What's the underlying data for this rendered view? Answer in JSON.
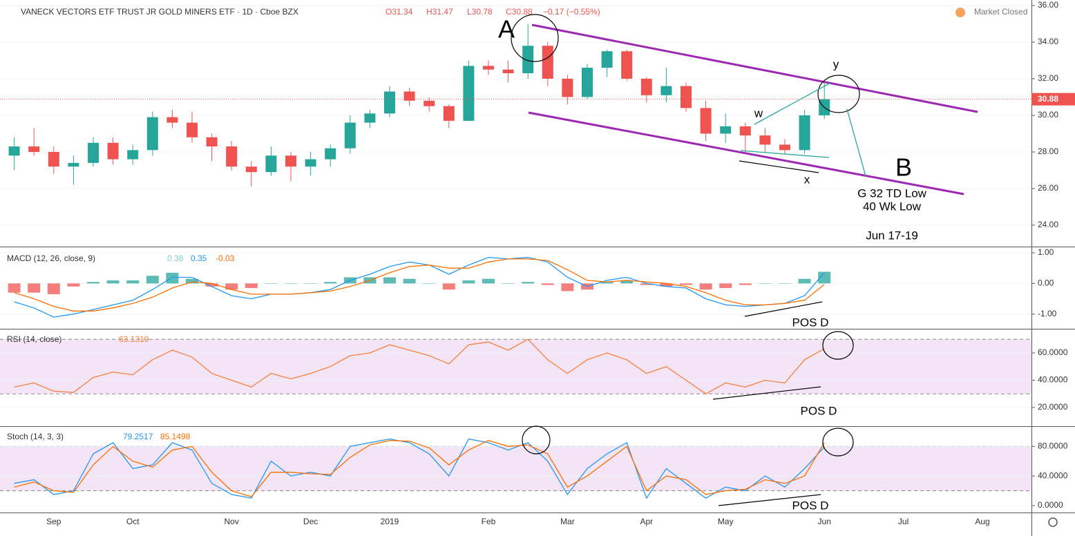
{
  "chart_data": [
    {
      "type": "candlestick",
      "title": "VANECK VECTORS ETF TRUST JR GOLD MINERS ETF · 1D · Cboe BZX",
      "quote": [
        "O31.34",
        "H31.47",
        "L30.78",
        "C30.88"
      ],
      "change": "−0.17 (−0.55%)",
      "status": "Market Closed",
      "categories": [
        null,
        null,
        "Sep",
        null,
        null,
        null,
        "Oct",
        null,
        null,
        null,
        null,
        "Nov",
        null,
        null,
        null,
        "Dec",
        null,
        null,
        null,
        "2019",
        null,
        null,
        null,
        null,
        "Feb",
        null,
        null,
        null,
        "Mar",
        null,
        null,
        null,
        "Apr",
        null,
        null,
        null,
        "May",
        null,
        null,
        null,
        null,
        "Jun",
        null,
        null,
        null,
        "Jul",
        null,
        null,
        null,
        "Aug"
      ],
      "open": [
        27.8,
        28.3,
        28.0,
        27.2,
        27.4,
        28.5,
        27.6,
        28.1,
        29.9,
        29.6,
        28.8,
        28.3,
        27.2,
        26.9,
        27.8,
        27.2,
        27.6,
        28.2,
        29.6,
        30.1,
        31.3,
        30.8,
        30.5,
        29.7,
        32.7,
        32.5,
        32.3,
        33.8,
        32.0,
        31.0,
        32.6,
        33.5,
        32.0,
        31.1,
        31.6,
        30.4,
        29.0,
        29.4,
        28.9,
        28.4,
        28.1,
        30.0,
        null,
        null,
        null,
        null,
        null,
        null,
        null,
        null
      ],
      "high": [
        28.8,
        29.3,
        28.3,
        27.8,
        28.8,
        28.8,
        28.4,
        30.2,
        30.3,
        30.2,
        29.0,
        28.6,
        27.5,
        28.3,
        28.0,
        28.0,
        28.4,
        30.0,
        30.3,
        31.6,
        31.5,
        31.0,
        30.6,
        33.0,
        33.0,
        33.0,
        35.0,
        34.0,
        32.2,
        32.8,
        33.6,
        33.6,
        32.1,
        32.6,
        31.8,
        30.8,
        30.1,
        29.6,
        29.3,
        28.7,
        30.3,
        31.8,
        null,
        null,
        null,
        null,
        null,
        null,
        null,
        null
      ],
      "low": [
        27.0,
        27.8,
        26.8,
        26.2,
        27.2,
        27.3,
        27.3,
        27.8,
        29.3,
        28.5,
        27.5,
        27.0,
        26.1,
        26.7,
        26.4,
        26.7,
        27.2,
        27.9,
        29.3,
        29.9,
        30.5,
        30.2,
        29.3,
        29.7,
        32.2,
        31.8,
        32.0,
        31.6,
        30.6,
        30.9,
        32.1,
        31.9,
        30.7,
        30.7,
        30.2,
        28.6,
        28.5,
        28.0,
        28.0,
        27.9,
        27.9,
        29.8,
        null,
        null,
        null,
        null,
        null,
        null,
        null,
        null
      ],
      "close": [
        28.3,
        28.0,
        27.2,
        27.4,
        28.5,
        27.6,
        28.1,
        29.9,
        29.6,
        28.8,
        28.3,
        27.2,
        26.9,
        27.8,
        27.2,
        27.6,
        28.2,
        29.6,
        30.1,
        31.3,
        30.8,
        30.5,
        29.7,
        32.7,
        32.5,
        32.3,
        33.8,
        32.0,
        31.0,
        32.6,
        33.5,
        32.0,
        31.1,
        31.6,
        30.4,
        29.0,
        29.4,
        28.9,
        28.4,
        28.1,
        30.0,
        30.88,
        null,
        null,
        null,
        null,
        null,
        null,
        null,
        null
      ],
      "up_color": "#26a69a",
      "down_color": "#ef5350",
      "ylim": [
        22.83,
        36.3
      ],
      "yticks": [
        {
          "value": 24,
          "label": "24.00"
        },
        {
          "value": 26,
          "label": "26.00"
        },
        {
          "value": 28,
          "label": "28.00"
        },
        {
          "value": 30,
          "label": "30.00"
        },
        {
          "value": 32,
          "label": "32.00"
        },
        {
          "value": 34,
          "label": "34.00"
        },
        {
          "value": 36,
          "label": "36.00"
        }
      ],
      "annotations": [
        "A",
        "B",
        "w",
        "x",
        "y",
        "G 32 TD Low",
        "40 Wk Low",
        "Jun 17-19"
      ]
    },
    {
      "type": "line",
      "title": "MACD (12, 26, close, 9)",
      "series": [
        {
          "type": "bar",
          "color": "#26a69a",
          "negative_color": "#ef5350",
          "values": [
            -0.3,
            -0.3,
            -0.35,
            -0.1,
            0.05,
            0.1,
            0.1,
            0.25,
            0.35,
            0.15,
            -0.1,
            -0.2,
            -0.15,
            0,
            0,
            0,
            0.05,
            0.2,
            0.2,
            0.2,
            0.15,
            0,
            -0.2,
            0.1,
            0.15,
            0,
            0.05,
            -0.05,
            -0.25,
            -0.2,
            0.05,
            0.1,
            -0.05,
            -0.1,
            -0.05,
            -0.2,
            -0.15,
            -0.05,
            0,
            0,
            0.15,
            0.38,
            null,
            null,
            null,
            null,
            null,
            null,
            null,
            null
          ]
        },
        {
          "type": "line",
          "color": "#2196f3",
          "values": [
            -0.6,
            -0.8,
            -1.1,
            -1.0,
            -0.85,
            -0.7,
            -0.55,
            -0.2,
            0.2,
            0.2,
            -0.1,
            -0.4,
            -0.5,
            -0.35,
            -0.35,
            -0.3,
            -0.2,
            0.1,
            0.3,
            0.55,
            0.7,
            0.6,
            0.3,
            0.6,
            0.85,
            0.8,
            0.85,
            0.7,
            0.2,
            -0.1,
            0.1,
            0.2,
            0.0,
            -0.1,
            -0.15,
            -0.5,
            -0.7,
            -0.75,
            -0.7,
            -0.65,
            -0.4,
            0.35,
            null,
            null,
            null,
            null,
            null,
            null,
            null,
            null
          ]
        },
        {
          "type": "line",
          "color": "#ff6d00",
          "values": [
            -0.3,
            -0.5,
            -0.75,
            -0.9,
            -0.9,
            -0.8,
            -0.65,
            -0.45,
            -0.15,
            0.05,
            0.0,
            -0.2,
            -0.35,
            -0.35,
            -0.35,
            -0.3,
            -0.25,
            -0.1,
            0.1,
            0.35,
            0.55,
            0.6,
            0.5,
            0.5,
            0.7,
            0.8,
            0.8,
            0.75,
            0.45,
            0.1,
            0.05,
            0.1,
            0.05,
            0.0,
            -0.1,
            -0.3,
            -0.55,
            -0.7,
            -0.7,
            -0.65,
            -0.55,
            -0.03,
            null,
            null,
            null,
            null,
            null,
            null,
            null,
            null
          ]
        }
      ],
      "ylim": [
        -1.48,
        1.18
      ],
      "yticks": [
        {
          "value": -1,
          "label": "-1.00"
        },
        {
          "value": 0,
          "label": "0.00"
        },
        {
          "value": 1,
          "label": "1.00"
        }
      ],
      "annotations": [
        "POS D"
      ]
    },
    {
      "type": "line",
      "title": "RSI (14, close)",
      "series": [
        {
          "type": "line",
          "color": "#f57f3c",
          "values": [
            35,
            38,
            32,
            31,
            42,
            46,
            44,
            55,
            62,
            57,
            45,
            40,
            35,
            45,
            41,
            45,
            50,
            58,
            60,
            66,
            62,
            58,
            52,
            66,
            68,
            62,
            70,
            55,
            45,
            55,
            60,
            55,
            45,
            50,
            40,
            30,
            38,
            35,
            40,
            38,
            55,
            63.1319,
            null,
            null,
            null,
            null,
            null,
            null,
            null,
            null
          ]
        }
      ],
      "band": [
        30,
        70
      ],
      "band_color": "#9c27b0",
      "ylim": [
        6.3,
        77.2
      ],
      "yticks": [
        {
          "value": 20,
          "label": "20.0000"
        },
        {
          "value": 40,
          "label": "40.0000"
        },
        {
          "value": 60,
          "label": "60.0000"
        }
      ],
      "annotations": [
        "POS D"
      ]
    },
    {
      "type": "line",
      "title": "Stoch (14, 3, 3)",
      "series": [
        {
          "type": "line",
          "color": "#2196f3",
          "values": [
            30,
            35,
            15,
            20,
            70,
            85,
            50,
            55,
            85,
            75,
            30,
            15,
            10,
            60,
            40,
            45,
            40,
            80,
            85,
            90,
            85,
            70,
            40,
            90,
            85,
            75,
            85,
            60,
            15,
            50,
            70,
            85,
            10,
            50,
            30,
            10,
            25,
            20,
            40,
            25,
            50,
            79.2517,
            null,
            null,
            null,
            null,
            null,
            null,
            null,
            null
          ]
        },
        {
          "type": "line",
          "color": "#ff6d00",
          "values": [
            25,
            32,
            20,
            18,
            55,
            80,
            60,
            52,
            75,
            80,
            45,
            20,
            12,
            45,
            45,
            43,
            42,
            65,
            82,
            88,
            87,
            78,
            55,
            75,
            88,
            80,
            82,
            70,
            25,
            40,
            60,
            80,
            20,
            40,
            35,
            15,
            20,
            22,
            35,
            30,
            40,
            85.1498,
            null,
            null,
            null,
            null,
            null,
            null,
            null,
            null
          ]
        }
      ],
      "band": [
        20,
        80
      ],
      "band_color": "#9c27b0",
      "ylim": [
        -9.4,
        106.4
      ],
      "yticks": [
        {
          "value": 0,
          "label": "0.0000"
        },
        {
          "value": 40,
          "label": "40.0000"
        },
        {
          "value": 80,
          "label": "80.0000"
        }
      ],
      "annotations": [
        "POS D"
      ]
    }
  ]
}
